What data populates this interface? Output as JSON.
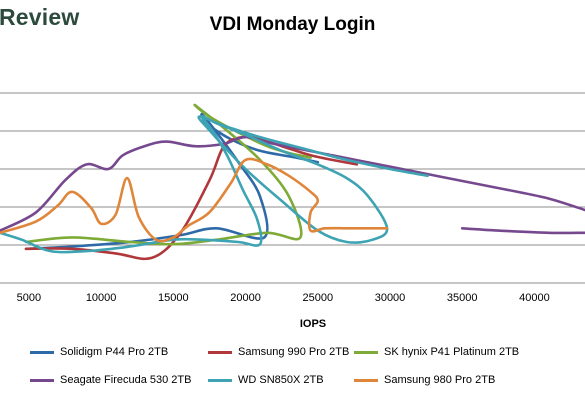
{
  "brand": "Review",
  "chart_data": {
    "type": "line",
    "title": "VDI Monday Login",
    "xlabel": "IOPS",
    "ylabel": "",
    "xlim": [
      3000,
      43500
    ],
    "x_ticks": [
      5000,
      10000,
      15000,
      20000,
      25000,
      30000,
      35000,
      40000
    ],
    "ylim": [
      0,
      1
    ],
    "grid": "horizontal",
    "legend_position": "bottom",
    "series": [
      {
        "name": "Solidigm P44 Pro 2TB",
        "color": "#2e6aa8",
        "points": [
          [
            4800,
            0.15
          ],
          [
            8000,
            0.16
          ],
          [
            12000,
            0.18
          ],
          [
            15500,
            0.21
          ],
          [
            18000,
            0.24
          ],
          [
            21300,
            0.2
          ],
          [
            21000,
            0.38
          ],
          [
            19500,
            0.53
          ],
          [
            18000,
            0.66
          ],
          [
            17000,
            0.74
          ],
          [
            17300,
            0.7
          ],
          [
            19000,
            0.63
          ],
          [
            21000,
            0.58
          ],
          [
            23500,
            0.55
          ],
          [
            25000,
            0.53
          ]
        ]
      },
      {
        "name": "Samsung 990 Pro 2TB",
        "color": "#b0373a",
        "points": [
          [
            4800,
            0.15
          ],
          [
            8000,
            0.15
          ],
          [
            11000,
            0.13
          ],
          [
            13500,
            0.11
          ],
          [
            15500,
            0.22
          ],
          [
            17500,
            0.45
          ],
          [
            18500,
            0.6
          ],
          [
            19800,
            0.64
          ],
          [
            21000,
            0.63
          ],
          [
            23000,
            0.59
          ],
          [
            24500,
            0.56
          ],
          [
            26000,
            0.54
          ],
          [
            27700,
            0.52
          ]
        ]
      },
      {
        "name": "SK hynix P41 Platinum 2TB",
        "color": "#7eab37",
        "points": [
          [
            4800,
            0.18
          ],
          [
            8000,
            0.2
          ],
          [
            12000,
            0.18
          ],
          [
            15000,
            0.17
          ],
          [
            18000,
            0.19
          ],
          [
            21500,
            0.22
          ],
          [
            23800,
            0.2
          ],
          [
            23000,
            0.38
          ],
          [
            21000,
            0.54
          ],
          [
            18500,
            0.68
          ],
          [
            16500,
            0.78
          ],
          [
            17500,
            0.73
          ],
          [
            19500,
            0.66
          ],
          [
            21500,
            0.6
          ],
          [
            23000,
            0.57
          ],
          [
            24500,
            0.55
          ]
        ]
      },
      {
        "name": "Seagate Firecuda 530 2TB",
        "color": "#76498f",
        "points": [
          [
            3000,
            0.23
          ],
          [
            5500,
            0.31
          ],
          [
            7500,
            0.45
          ],
          [
            9000,
            0.52
          ],
          [
            10500,
            0.5
          ],
          [
            11500,
            0.56
          ],
          [
            13000,
            0.6
          ],
          [
            14500,
            0.62
          ],
          [
            16500,
            0.6
          ],
          [
            18500,
            0.61
          ],
          [
            20000,
            0.64
          ],
          [
            22000,
            0.61
          ],
          [
            26000,
            0.56
          ],
          [
            30000,
            0.51
          ],
          [
            34000,
            0.46
          ],
          [
            38000,
            0.41
          ],
          [
            41000,
            0.37
          ],
          [
            43500,
            0.32
          ],
          [
            null,
            null
          ],
          [
            35000,
            0.24
          ],
          [
            37500,
            0.23
          ],
          [
            41000,
            0.22
          ],
          [
            43500,
            0.22
          ]
        ]
      },
      {
        "name": "WD SN850X 2TB",
        "color": "#3ea3b3",
        "points": [
          [
            3000,
            0.22
          ],
          [
            4500,
            0.19
          ],
          [
            6500,
            0.14
          ],
          [
            9000,
            0.14
          ],
          [
            12000,
            0.16
          ],
          [
            15000,
            0.19
          ],
          [
            17000,
            0.19
          ],
          [
            19500,
            0.18
          ],
          [
            21000,
            0.17
          ],
          [
            20800,
            0.28
          ],
          [
            19800,
            0.41
          ],
          [
            18800,
            0.55
          ],
          [
            17800,
            0.66
          ],
          [
            17000,
            0.73
          ],
          [
            18000,
            0.7
          ],
          [
            20000,
            0.65
          ],
          [
            22500,
            0.58
          ],
          [
            25000,
            0.52
          ],
          [
            27000,
            0.46
          ],
          [
            28500,
            0.38
          ],
          [
            29800,
            0.24
          ],
          [
            28800,
            0.19
          ],
          [
            27000,
            0.18
          ],
          [
            25000,
            0.23
          ],
          [
            22500,
            0.36
          ],
          [
            20000,
            0.5
          ],
          [
            17500,
            0.67
          ],
          [
            16800,
            0.73
          ],
          [
            18500,
            0.69
          ],
          [
            21000,
            0.64
          ],
          [
            24000,
            0.59
          ],
          [
            27000,
            0.54
          ],
          [
            30000,
            0.5
          ],
          [
            32600,
            0.47
          ]
        ]
      },
      {
        "name": "Samsung 980 Pro 2TB",
        "color": "#e0863a",
        "points": [
          [
            3000,
            0.22
          ],
          [
            5500,
            0.27
          ],
          [
            7000,
            0.34
          ],
          [
            8000,
            0.4
          ],
          [
            9300,
            0.33
          ],
          [
            10000,
            0.26
          ],
          [
            11000,
            0.3
          ],
          [
            11800,
            0.46
          ],
          [
            12600,
            0.29
          ],
          [
            13800,
            0.19
          ],
          [
            15000,
            0.2
          ],
          [
            16000,
            0.25
          ],
          [
            17500,
            0.31
          ],
          [
            19000,
            0.44
          ],
          [
            20000,
            0.54
          ],
          [
            21500,
            0.52
          ],
          [
            23000,
            0.47
          ],
          [
            24500,
            0.4
          ],
          [
            25000,
            0.36
          ],
          [
            24500,
            0.31
          ],
          [
            24500,
            0.23
          ],
          [
            25500,
            0.24
          ],
          [
            27000,
            0.24
          ],
          [
            28500,
            0.24
          ],
          [
            29800,
            0.24
          ]
        ]
      }
    ]
  }
}
